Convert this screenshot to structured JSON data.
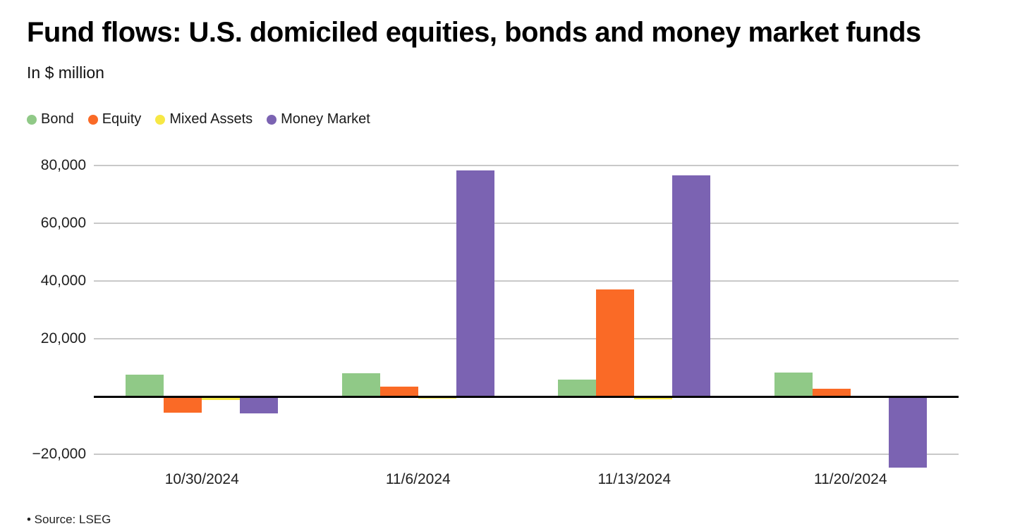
{
  "header": {
    "title": "Fund flows: U.S. domiciled equities, bonds and money market funds",
    "subtitle": "In $ million"
  },
  "footer": {
    "source_note": "• Source: LSEG"
  },
  "chart_data": {
    "type": "bar",
    "title": "Fund flows: U.S. domiciled equities, bonds and money market funds",
    "subtitle": "In $ million",
    "categories": [
      "10/30/2024",
      "11/6/2024",
      "11/13/2024",
      "11/20/2024"
    ],
    "series": [
      {
        "name": "Bond",
        "color": "#90c987",
        "values": [
          7500,
          8200,
          5800,
          8300
        ]
      },
      {
        "name": "Equity",
        "color": "#fa6a26",
        "values": [
          -5600,
          3400,
          37100,
          2800
        ]
      },
      {
        "name": "Mixed Assets",
        "color": "#f7e845",
        "values": [
          -1200,
          -700,
          -900,
          0
        ]
      },
      {
        "name": "Money Market",
        "color": "#7b63b2",
        "values": [
          -5900,
          78300,
          76500,
          -24600
        ]
      }
    ],
    "ylim": [
      -26500,
      86500
    ],
    "yticks": [
      {
        "value": 80000,
        "label": "80,000"
      },
      {
        "value": 60000,
        "label": "60,000"
      },
      {
        "value": 40000,
        "label": "40,000"
      },
      {
        "value": 20000,
        "label": "20,000"
      },
      {
        "value": -20000,
        "label": "−20,000"
      }
    ],
    "grid": true,
    "legend_position": "top",
    "baseline_color": "#000000",
    "gridline_color": "#c9c9c9"
  }
}
